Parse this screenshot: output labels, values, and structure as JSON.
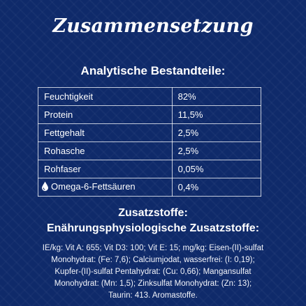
{
  "title": "Zusammensetzung",
  "analysis": {
    "heading": "Analytische Bestandteile:",
    "rows": [
      {
        "name": "Feuchtigkeit",
        "value": "82%"
      },
      {
        "name": "Protein",
        "value": "11,5%"
      },
      {
        "name": "Fettgehalt",
        "value": "2,5%"
      },
      {
        "name": "Rohasche",
        "value": "2,5%"
      },
      {
        "name": "Rohfaser",
        "value": "0,05%"
      },
      {
        "name": "Omega-6-Fettsäuren",
        "value": "0,4%",
        "icon": "water-drop-icon"
      }
    ]
  },
  "additives": {
    "heading_1": "Zusatzstoffe:",
    "heading_2": "Enährungsphysiologische Zusatzstoffe:",
    "lines": [
      "IE/kg: Vit A: 655; Vit D3: 100; Vit E: 15; mg/kg: Eisen-(II)-sulfat",
      "Monohydrat: (Fe: 7,6); Calciumjodat, wasserfrei: (I: 0,19);",
      "Kupfer-(II)-sulfat Pentahydrat: (Cu: 0,66); Mangansulfat",
      "Monohydrat: (Mn: 1,5); Zinksulfat Monohydrat: (Zn: 13);",
      "Taurin: 413. Aromastoffe."
    ]
  }
}
